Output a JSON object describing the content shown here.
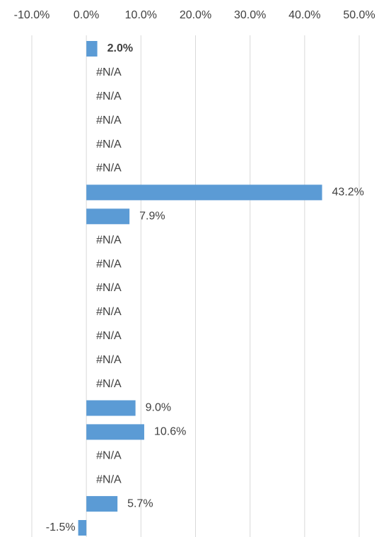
{
  "chart_data": {
    "type": "barh",
    "values": [
      2.0,
      null,
      null,
      null,
      null,
      null,
      43.2,
      7.9,
      null,
      null,
      null,
      null,
      null,
      null,
      null,
      9.0,
      10.6,
      null,
      null,
      5.7,
      -1.5
    ],
    "value_labels": [
      "2.0%",
      "#N/A",
      "#N/A",
      "#N/A",
      "#N/A",
      "#N/A",
      "43.2%",
      "7.9%",
      "#N/A",
      "#N/A",
      "#N/A",
      "#N/A",
      "#N/A",
      "#N/A",
      "#N/A",
      "9.0%",
      "10.6%",
      "#N/A",
      "#N/A",
      "5.7%",
      "-1.5%"
    ],
    "bold_value_labels": [
      0
    ],
    "color": "#5b9bd5",
    "xlim": [
      -10,
      50
    ],
    "xticks": [
      {
        "value": -10,
        "label": "-10.0%"
      },
      {
        "value": 0,
        "label": "0.0%"
      },
      {
        "value": 10,
        "label": "10.0%"
      },
      {
        "value": 20,
        "label": "20.0%"
      },
      {
        "value": 30,
        "label": "30.0%"
      },
      {
        "value": 40,
        "label": "40.0%"
      },
      {
        "value": 50,
        "label": "50.0%"
      }
    ],
    "grid": true
  }
}
